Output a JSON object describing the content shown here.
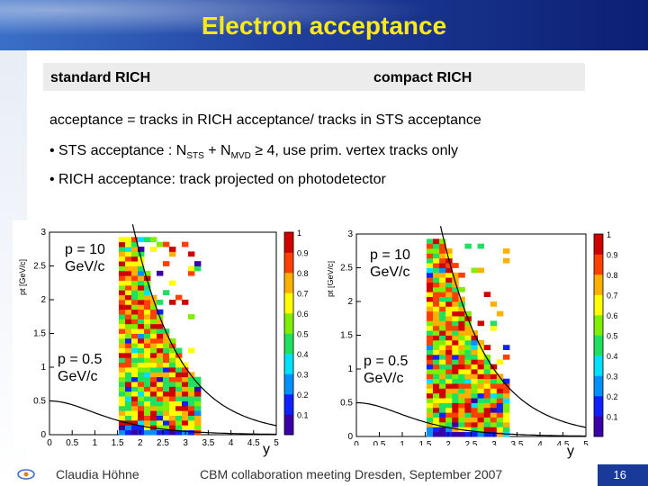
{
  "title": "Electron acceptance",
  "header": {
    "left": "standard RICH",
    "right": "compact RICH"
  },
  "definition": "acceptance = tracks in RICH acceptance/ tracks in STS acceptance",
  "bullets": {
    "sts_prefix": "• STS acceptance : N",
    "sts_sub1": "STS",
    "sts_plus": " + N",
    "sts_sub2": "MVD",
    "sts_suffix": " ≥ 4, use prim. vertex tracks only",
    "rich": "• RICH acceptance: track projected on photodetector"
  },
  "chart_data": [
    {
      "type": "heatmap",
      "title": "",
      "ylabel": "pt [GeV/c]",
      "xlabel": "y",
      "xlim": [
        0,
        5
      ],
      "ylim": [
        0,
        3
      ],
      "xticks": [
        "0",
        "0.5",
        "1",
        "1.5",
        "2",
        "2.5",
        "3",
        "3.5",
        "4",
        "4.5",
        "5"
      ],
      "yticks": [
        "0",
        "0.5",
        "1",
        "1.5",
        "2",
        "2.5",
        "3"
      ],
      "colorbar_ticks": [
        "0.1",
        "0.2",
        "0.3",
        "0.4",
        "0.5",
        "0.6",
        "0.7",
        "0.8",
        "0.9",
        "1"
      ],
      "colorbar_range": [
        0,
        1
      ],
      "colors": [
        "#3a00a8",
        "#1020ff",
        "#0090ff",
        "#00e0ff",
        "#20e060",
        "#80ee00",
        "#ffff00",
        "#ffb000",
        "#ff4000",
        "#d00000"
      ],
      "annotations": [
        "p = 10 GeV/c",
        "p = 0.5 GeV/c"
      ],
      "annotation_lines": {
        "high": [
          "p = 10",
          "GeV/c"
        ],
        "low": [
          "p = 0.5",
          "GeV/c"
        ]
      },
      "accepted_region": {
        "y_min": 1.5,
        "y_max": 3.3
      },
      "curves": [
        {
          "momentum": 10
        },
        {
          "momentum": 0.5
        }
      ]
    },
    {
      "type": "heatmap",
      "title": "",
      "ylabel": "pt [GeV/c]",
      "xlabel": "y",
      "xlim": [
        0,
        5
      ],
      "ylim": [
        0,
        3
      ],
      "xticks": [
        "0",
        "0.5",
        "1",
        "1.5",
        "2",
        "2.5",
        "3",
        "3.5",
        "4",
        "4.5",
        "5"
      ],
      "yticks": [
        "0",
        "0.5",
        "1",
        "1.5",
        "2",
        "2.5",
        "3"
      ],
      "colorbar_ticks": [
        "0.1",
        "0.2",
        "0.3",
        "0.4",
        "0.5",
        "0.6",
        "0.7",
        "0.8",
        "0.9",
        "1"
      ],
      "colorbar_range": [
        0,
        1
      ],
      "colors": [
        "#3a00a8",
        "#1020ff",
        "#0090ff",
        "#00e0ff",
        "#20e060",
        "#80ee00",
        "#ffff00",
        "#ffb000",
        "#ff4000",
        "#d00000"
      ],
      "annotations": [
        "p = 10 GeV/c",
        "p = 0.5 GeV/c"
      ],
      "annotation_lines": {
        "high": [
          "p = 10",
          "GeV/c"
        ],
        "low": [
          "p = 0.5",
          "GeV/c"
        ]
      },
      "accepted_region": {
        "y_min": 1.5,
        "y_max": 3.3
      },
      "curves": [
        {
          "momentum": 10
        },
        {
          "momentum": 0.5
        }
      ]
    }
  ],
  "footer": {
    "author": "Claudia Höhne",
    "event": "CBM collaboration meeting Dresden, September 2007",
    "page": "16"
  }
}
